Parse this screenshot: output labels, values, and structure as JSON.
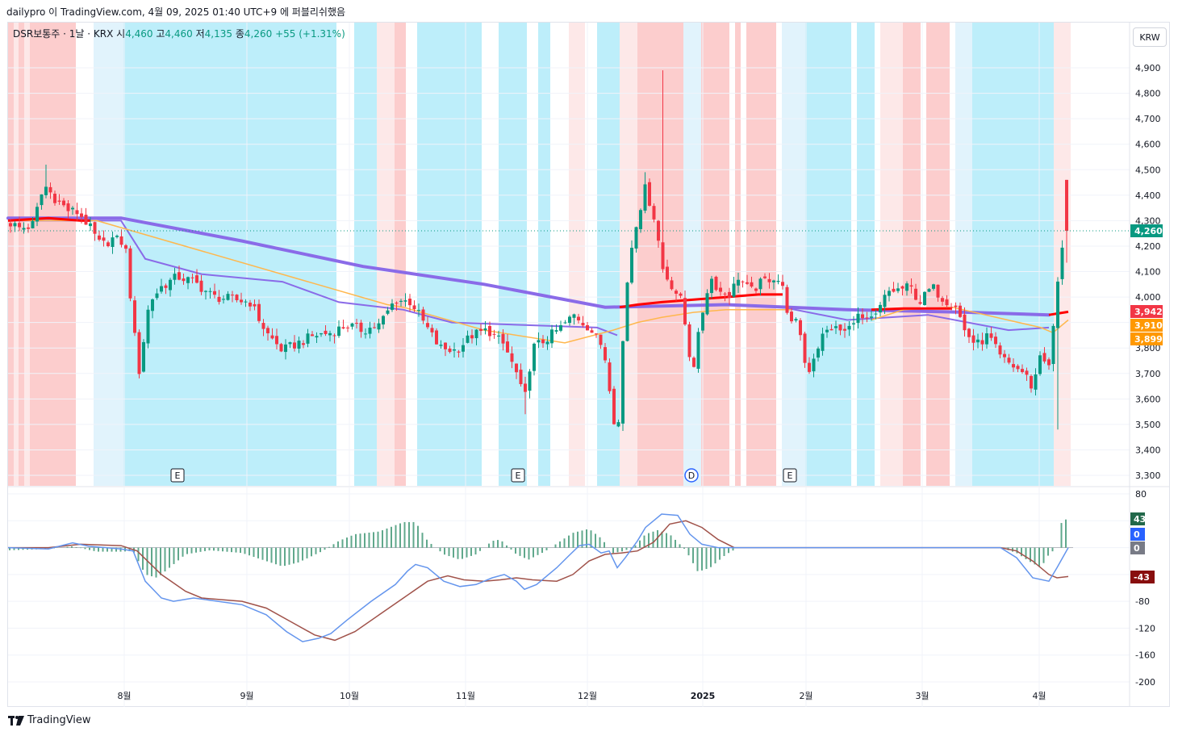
{
  "header": {
    "attribution": "dailypro 이 TradingView.com, 4월 09, 2025 01:40 UTC+9 에 퍼블리쉬했음"
  },
  "legend": {
    "symbol": "DSR보통주 · 1날 · KRX",
    "open_label": "시",
    "open": "4,460",
    "high_label": "고",
    "high": "4,460",
    "low_label": "저",
    "low": "4,135",
    "close_label": "종",
    "close": "4,260",
    "change": "+55 (+1.31%)"
  },
  "currency_button": "KRW",
  "brand": "TradingView",
  "colors": {
    "up": "#089981",
    "down": "#f23645",
    "bull_bg": "#fcc4c4",
    "bull_bg_light": "#fde4e4",
    "bear_bg": "#b2ebf9",
    "bear_bg_light": "#dcf1fc",
    "ma_long": "#8a6be8",
    "ma_short": "#ff0000",
    "ma_orange": "#ffb74d",
    "macd": "#6495ed",
    "signal": "#a0524a"
  },
  "chart_data": [
    {
      "type": "candlestick",
      "y_axis_ticks": [
        "4,900",
        "4,800",
        "4,700",
        "4,600",
        "4,500",
        "4,400",
        "4,300",
        "4,200",
        "4,100",
        "4,000",
        "3,900",
        "3,800",
        "3,700",
        "3,600",
        "3,500",
        "3,400",
        "3,300"
      ],
      "ylim": [
        3250,
        5000
      ],
      "x_axis_labels": [
        "8월",
        "9월",
        "10월",
        "11월",
        "12월",
        "2025",
        "2월",
        "3월",
        "4월"
      ],
      "last_price_label": "4,260",
      "price_tags": [
        {
          "label": "3,942",
          "value": 3942,
          "color": "#f23645"
        },
        {
          "label": "3,910",
          "value": 3910,
          "color": "#ff9800"
        },
        {
          "label": "3,899",
          "value": 3899,
          "color": "#ff9800"
        }
      ],
      "event_markers": [
        "E",
        "E",
        "D",
        "E"
      ],
      "sample_ohlc": [
        {
          "date": "2024-07-01",
          "close": 4290
        },
        {
          "date": "2024-07-10",
          "close": 4450
        },
        {
          "date": "2024-07-30",
          "close": 4150
        },
        {
          "date": "2024-08-05",
          "close": 3700
        },
        {
          "date": "2024-08-20",
          "close": 4080
        },
        {
          "date": "2024-09-25",
          "close": 3790
        },
        {
          "date": "2024-10-21",
          "close": 4000
        },
        {
          "date": "2024-11-13",
          "close": 3560
        },
        {
          "date": "2024-12-09",
          "close": 3420
        },
        {
          "date": "2024-12-16",
          "close": 4450
        },
        {
          "date": "2024-12-24",
          "close": 4000
        },
        {
          "date": "2025-01-02",
          "close": 3680
        },
        {
          "date": "2025-01-20",
          "close": 4080
        },
        {
          "date": "2025-02-03",
          "close": 3690
        },
        {
          "date": "2025-03-04",
          "close": 4030
        },
        {
          "date": "2025-03-31",
          "close": 3640
        },
        {
          "date": "2025-04-07",
          "close": 3960
        },
        {
          "date": "2025-04-09",
          "open": 4460,
          "high": 4460,
          "low": 4135,
          "close": 4260
        }
      ]
    },
    {
      "type": "macd",
      "y_axis_ticks": [
        "80",
        "-80",
        "-120",
        "-160",
        "-200"
      ],
      "ylim": [
        -200,
        80
      ],
      "value_tags": [
        {
          "label": "43",
          "value": 43,
          "color": "#22684a"
        },
        {
          "label": "0",
          "value": 0,
          "color": "#2962ff"
        },
        {
          "label": "0",
          "value": 0,
          "color": "#787b86"
        },
        {
          "label": "-43",
          "value": -43,
          "color": "#880e0e"
        }
      ]
    }
  ]
}
